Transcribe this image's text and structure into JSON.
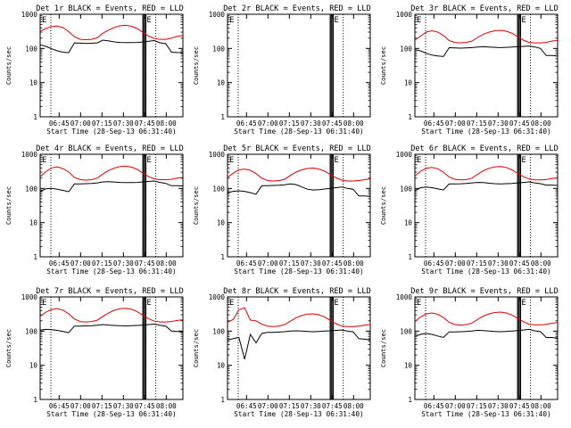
{
  "chart_data": {
    "type": "line",
    "layout": "3x3 grid of panels",
    "ylabel": "Counts/sec",
    "xlabel": "Start Time (28-Sep-13 06:31:40)",
    "yscale": "log",
    "ylim": [
      1,
      1000
    ],
    "y_ticks": [
      "1",
      "10",
      "100",
      "1000"
    ],
    "x_range_minutes": [
      0,
      100
    ],
    "x_ticks": [
      {
        "label": "06:45",
        "minute": 13.33
      },
      {
        "label": "07:00",
        "minute": 28.33
      },
      {
        "label": "07:15",
        "minute": 43.33
      },
      {
        "label": "07:30",
        "minute": 58.33
      },
      {
        "label": "07:45",
        "minute": 73.33
      },
      {
        "label": "08:00",
        "minute": 88.33
      }
    ],
    "marker_label": "E",
    "marker_lines_minutes": {
      "dotted": [
        7.5,
        81.0
      ],
      "solid": [
        72.0,
        73.0,
        74.0
      ]
    },
    "series_colors": {
      "events": "#000000",
      "lld": "#e00000"
    },
    "panels": [
      {
        "title": "Det 1r BLACK = Events, RED = LLD",
        "has_data": true,
        "series": [
          {
            "name": "Events (black)",
            "values": [
              128,
              115,
              98,
              85,
              78,
              75,
              145,
              143,
              140,
              142,
              145,
              175,
              166,
              155,
              150,
              148,
              148,
              150,
              155,
              162,
              170,
              146,
              138,
              78,
              76,
              75
            ]
          },
          {
            "name": "LLD (red)",
            "values": [
              315,
              380,
              440,
              450,
              405,
              310,
              220,
              185,
              180,
              185,
              205,
              280,
              345,
              410,
              460,
              475,
              445,
              380,
              295,
              230,
              195,
              185,
              185,
              200,
              225,
              240
            ]
          }
        ]
      },
      {
        "title": "Det 2r BLACK = Events, RED = LLD",
        "has_data": false,
        "series": []
      },
      {
        "title": "Det 3r BLACK = Events, RED = LLD",
        "has_data": true,
        "series": [
          {
            "name": "Events (black)",
            "values": [
              92,
              85,
              72,
              64,
              60,
              58,
              105,
              104,
              102,
              104,
              106,
              110,
              112,
              110,
              108,
              106,
              108,
              110,
              112,
              115,
              118,
              110,
              100,
              62,
              62,
              60
            ]
          },
          {
            "name": "LLD (red)",
            "values": [
              175,
              230,
              300,
              330,
              300,
              240,
              170,
              150,
              145,
              150,
              165,
              210,
              260,
              300,
              330,
              340,
              320,
              280,
              220,
              175,
              150,
              145,
              145,
              150,
              165,
              170
            ]
          }
        ]
      },
      {
        "title": "Det 4r BLACK = Events, RED = LLD",
        "has_data": true,
        "series": [
          {
            "name": "Events (black)",
            "values": [
              80,
              98,
              100,
              95,
              88,
              80,
              135,
              135,
              138,
              140,
              145,
              155,
              158,
              154,
              150,
              148,
              148,
              150,
              155,
              160,
              165,
              150,
              140,
              120,
              120,
              118
            ]
          },
          {
            "name": "LLD (red)",
            "values": [
              220,
              310,
              400,
              425,
              380,
              300,
              210,
              180,
              175,
              180,
              200,
              265,
              335,
              395,
              440,
              450,
              420,
              360,
              280,
              220,
              190,
              180,
              180,
              185,
              200,
              210
            ]
          }
        ]
      },
      {
        "title": "Det 5r BLACK = Events, RED = LLD",
        "has_data": true,
        "series": [
          {
            "name": "Events (black)",
            "values": [
              75,
              82,
              85,
              82,
              75,
              68,
              120,
              120,
              122,
              124,
              128,
              135,
              130,
              110,
              95,
              90,
              92,
              96,
              100,
              105,
              110,
              100,
              95,
              60,
              60,
              58
            ]
          },
          {
            "name": "LLD (red)",
            "values": [
              210,
              280,
              350,
              370,
              340,
              270,
              200,
              170,
              165,
              170,
              185,
              240,
              300,
              350,
              385,
              395,
              370,
              320,
              255,
              205,
              175,
              165,
              165,
              170,
              180,
              190
            ]
          }
        ]
      },
      {
        "title": "Det 6r BLACK = Events, RED = LLD",
        "has_data": true,
        "series": [
          {
            "name": "Events (black)",
            "values": [
              85,
              105,
              110,
              105,
              98,
              90,
              135,
              135,
              137,
              140,
              145,
              150,
              148,
              142,
              138,
              136,
              138,
              140,
              145,
              150,
              155,
              145,
              138,
              125,
              125,
              122
            ]
          },
          {
            "name": "LLD (red)",
            "values": [
              230,
              320,
              390,
              410,
              375,
              300,
              215,
              185,
              178,
              182,
              200,
              260,
              330,
              390,
              430,
              440,
              410,
              350,
              275,
              220,
              188,
              178,
              178,
              182,
              195,
              205
            ]
          }
        ]
      },
      {
        "title": "Det 7r BLACK = Events, RED = LLD",
        "has_data": true,
        "series": [
          {
            "name": "Events (black)",
            "values": [
              108,
              112,
              110,
              105,
              98,
              90,
              140,
              140,
              142,
              144,
              148,
              155,
              150,
              146,
              144,
              142,
              144,
              146,
              150,
              155,
              160,
              148,
              140,
              100,
              98,
              95
            ]
          },
          {
            "name": "LLD (red)",
            "values": [
              270,
              360,
              430,
              455,
              410,
              320,
              225,
              190,
              185,
              190,
              208,
              270,
              340,
              405,
              450,
              465,
              435,
              370,
              290,
              228,
              195,
              185,
              185,
              190,
              205,
              215
            ]
          }
        ]
      },
      {
        "title": "Det 8r BLACK = Events, RED = LLD",
        "has_data": true,
        "series": [
          {
            "name": "Events (black)",
            "values": [
              55,
              60,
              65,
              15,
              80,
              45,
              85,
              92,
              92,
              94,
              96,
              100,
              102,
              100,
              98,
              96,
              98,
              100,
              102,
              105,
              108,
              100,
              95,
              60,
              58,
              55
            ]
          },
          {
            "name": "LLD (red)",
            "values": [
              180,
              220,
              420,
              480,
              210,
              200,
              160,
              140,
              135,
              140,
              155,
              195,
              245,
              285,
              315,
              320,
              300,
              260,
              205,
              165,
              140,
              135,
              135,
              140,
              150,
              155
            ]
          }
        ]
      },
      {
        "title": "Det 9r BLACK = Events, RED = LLD",
        "has_data": true,
        "series": [
          {
            "name": "Events (black)",
            "values": [
              70,
              80,
              85,
              80,
              72,
              65,
              95,
              95,
              96,
              98,
              100,
              106,
              104,
              100,
              98,
              96,
              98,
              100,
              104,
              108,
              112,
              102,
              96,
              65,
              65,
              62
            ]
          },
          {
            "name": "LLD (red)",
            "values": [
              190,
              260,
              320,
              340,
              310,
              250,
              180,
              155,
              150,
              155,
              172,
              220,
              275,
              320,
              350,
              360,
              340,
              295,
              235,
              188,
              160,
              152,
              152,
              158,
              170,
              178
            ]
          }
        ]
      }
    ]
  }
}
